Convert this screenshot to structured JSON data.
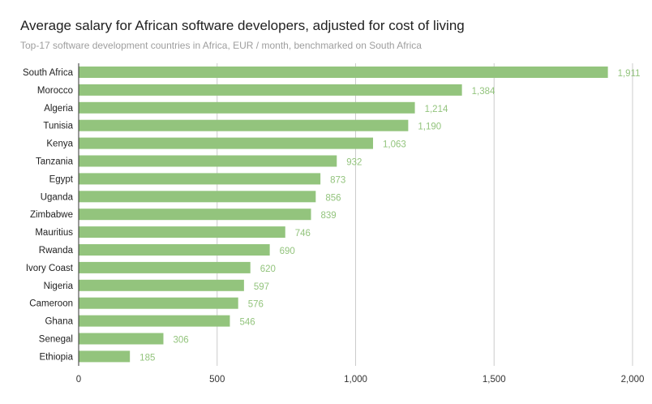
{
  "chart_data": {
    "type": "bar",
    "orientation": "horizontal",
    "title": "Average salary for African software developers, adjusted for cost of living",
    "subtitle": "Top-17 software development countries in Africa, EUR / month, benchmarked on South Africa",
    "categories": [
      "South Africa",
      "Morocco",
      "Algeria",
      "Tunisia",
      "Kenya",
      "Tanzania",
      "Egypt",
      "Uganda",
      "Zimbabwe",
      "Mauritius",
      "Rwanda",
      "Ivory Coast",
      "Nigeria",
      "Cameroon",
      "Ghana",
      "Senegal",
      "Ethiopia"
    ],
    "values": [
      1911,
      1384,
      1214,
      1190,
      1063,
      932,
      873,
      856,
      839,
      746,
      690,
      620,
      597,
      576,
      546,
      306,
      185
    ],
    "value_labels": [
      "1,911",
      "1,384",
      "1,214",
      "1,190",
      "1,063",
      "932",
      "873",
      "856",
      "839",
      "746",
      "690",
      "620",
      "597",
      "576",
      "546",
      "306",
      "185"
    ],
    "xlim": [
      0,
      2000
    ],
    "xticks": [
      0,
      500,
      1000,
      1500,
      2000
    ],
    "xtick_labels": [
      "0",
      "500",
      "1,000",
      "1,500",
      "2,000"
    ],
    "xlabel": "",
    "ylabel": "",
    "grid": true,
    "bar_color": "#93c47d",
    "grid_color": "#cccccc",
    "axis_color": "#333333"
  }
}
